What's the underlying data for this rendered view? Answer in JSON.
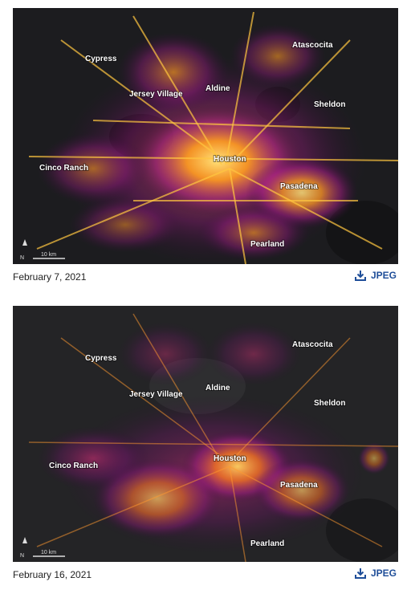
{
  "panels": [
    {
      "date": "February 7, 2021",
      "download_label": "JPEG",
      "scale_label": "10 km",
      "north_label": "N",
      "cities": [
        "Cypress",
        "Atascocita",
        "Aldine",
        "Jersey Village",
        "Sheldon",
        "Cinco Ranch",
        "Houston",
        "Pasadena",
        "Pearland"
      ]
    },
    {
      "date": "February 16, 2021",
      "download_label": "JPEG",
      "scale_label": "10 km",
      "north_label": "N",
      "cities": [
        "Cypress",
        "Atascocita",
        "Aldine",
        "Jersey Village",
        "Sheldon",
        "Cinco Ranch",
        "Houston",
        "Pasadena",
        "Pearland"
      ]
    }
  ],
  "icons": {
    "download": "download-icon",
    "north_arrow": "north-arrow-icon"
  },
  "colors": {
    "background": "#ffffff",
    "link": "#1f4e99",
    "map_dark": "#1c1c1f",
    "glow_hot": "#ffd34a",
    "glow_mid": "#ff8a1e",
    "glow_low": "#b0208a"
  }
}
